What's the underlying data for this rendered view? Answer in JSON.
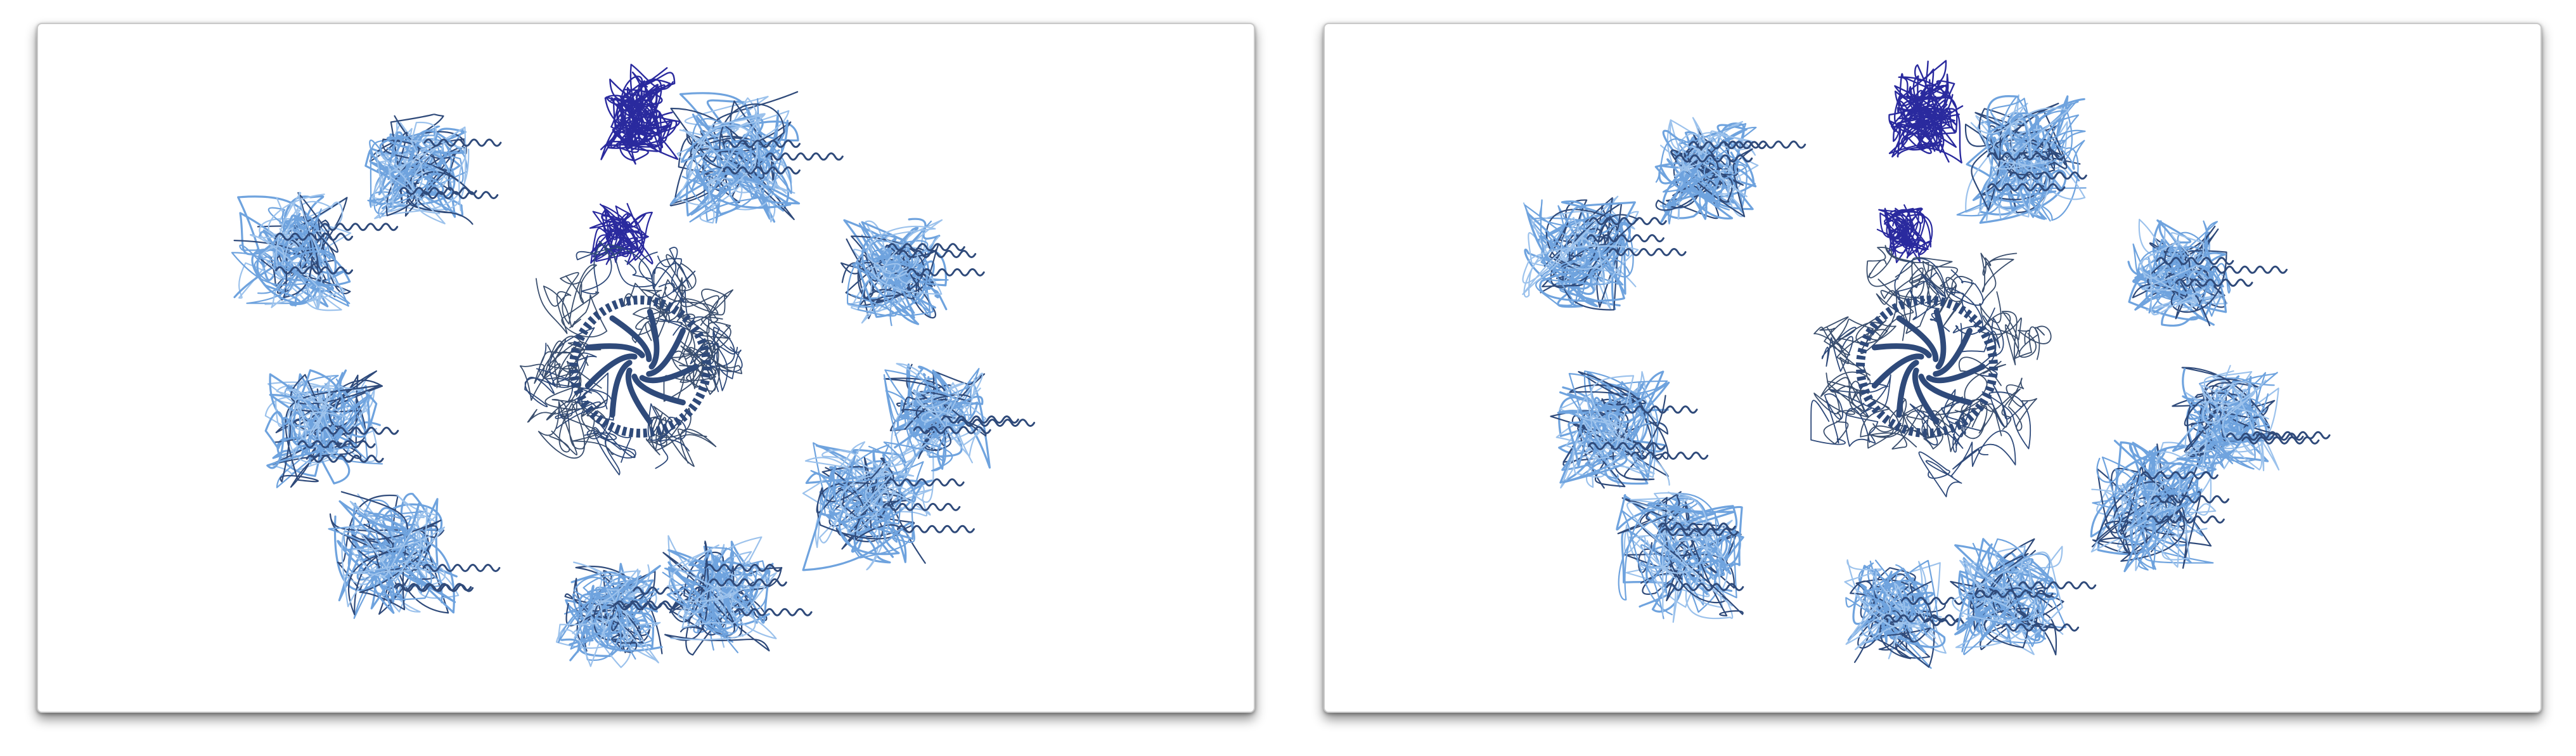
{
  "views": [
    {
      "id": "left"
    },
    {
      "id": "right"
    }
  ],
  "colors": {
    "background": "#ffffff",
    "dark_chain": "#2a2a9e",
    "mid_chain": "#2f4a7a",
    "light_chain": "#6fa3de",
    "pale_chain": "#9cc2ec",
    "frame_border": "#c9c9c9"
  },
  "structure": {
    "ring_blades": 9,
    "outer_domains": 10
  }
}
